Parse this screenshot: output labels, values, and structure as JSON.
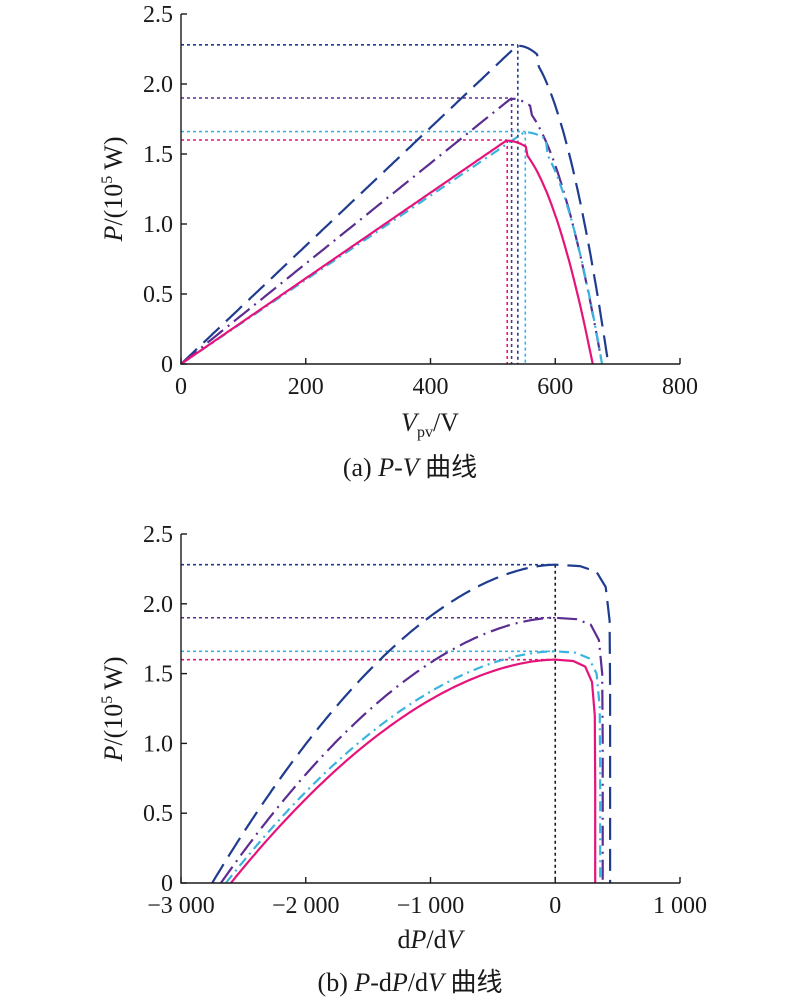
{
  "chart_data": [
    {
      "type": "line",
      "caption": {
        "prefix": "(a) ",
        "p": "P",
        "dash": "-",
        "v": "V",
        "suffix": " 曲线"
      },
      "ylabel": {
        "italic": "P",
        "text": "/(10",
        "sup": "5",
        "tail": " W)"
      },
      "xlabel": {
        "italic": "V",
        "sub": "pv",
        "text": "/V"
      },
      "xlim": [
        0,
        800
      ],
      "ylim": [
        0,
        2.5
      ],
      "xticks": [
        "0",
        "200",
        "400",
        "600",
        "800"
      ],
      "yticks": [
        "0",
        "0.5",
        "1.0",
        "1.5",
        "2.0",
        "2.5"
      ],
      "series": [
        {
          "color": "#1f3c8f",
          "dash": "22 9",
          "mpp_v": 540,
          "p_max": 2.28,
          "v_oc": 685
        },
        {
          "color": "#5b2d91",
          "dash": "20 6 2 6",
          "mpp_v": 530,
          "p_max": 1.9,
          "v_oc": 675
        },
        {
          "color": "#3ab3e0",
          "dash": "10 5 2 5",
          "mpp_v": 552,
          "p_max": 1.66,
          "v_oc": 675
        },
        {
          "color": "#e6147a",
          "dash": "",
          "mpp_v": 523,
          "p_max": 1.6,
          "v_oc": 660
        }
      ]
    },
    {
      "type": "line",
      "caption": {
        "prefix": "(b) ",
        "p": "P",
        "dash": "-d",
        "p2": "P",
        "slash": "/d",
        "v": "V",
        "suffix": " 曲线"
      },
      "ylabel": {
        "italic": "P",
        "text": "/(10",
        "sup": "5",
        "tail": " W)"
      },
      "xlabel": {
        "d1": "d",
        "p": "P",
        "d2": "/d",
        "v": "V"
      },
      "xlim": [
        -3000,
        1000
      ],
      "ylim": [
        0,
        2.5
      ],
      "xticks": [
        "−3 000",
        "−2 000",
        "−1 000",
        "0",
        "1 000"
      ],
      "yticks": [
        "0",
        "0.5",
        "1.0",
        "1.5",
        "2.0",
        "2.5"
      ],
      "series": [
        {
          "color": "#1f3c8f",
          "dash": "22 9",
          "p_max": 2.28,
          "x_start": -2750,
          "x_end": 440
        },
        {
          "color": "#5b2d91",
          "dash": "20 6 2 6",
          "p_max": 1.9,
          "x_start": -2680,
          "x_end": 380
        },
        {
          "color": "#3ab3e0",
          "dash": "10 5 2 5",
          "p_max": 1.66,
          "x_start": -2640,
          "x_end": 360
        },
        {
          "color": "#e6147a",
          "dash": "",
          "p_max": 1.6,
          "x_start": -2600,
          "x_end": 320
        }
      ]
    }
  ]
}
